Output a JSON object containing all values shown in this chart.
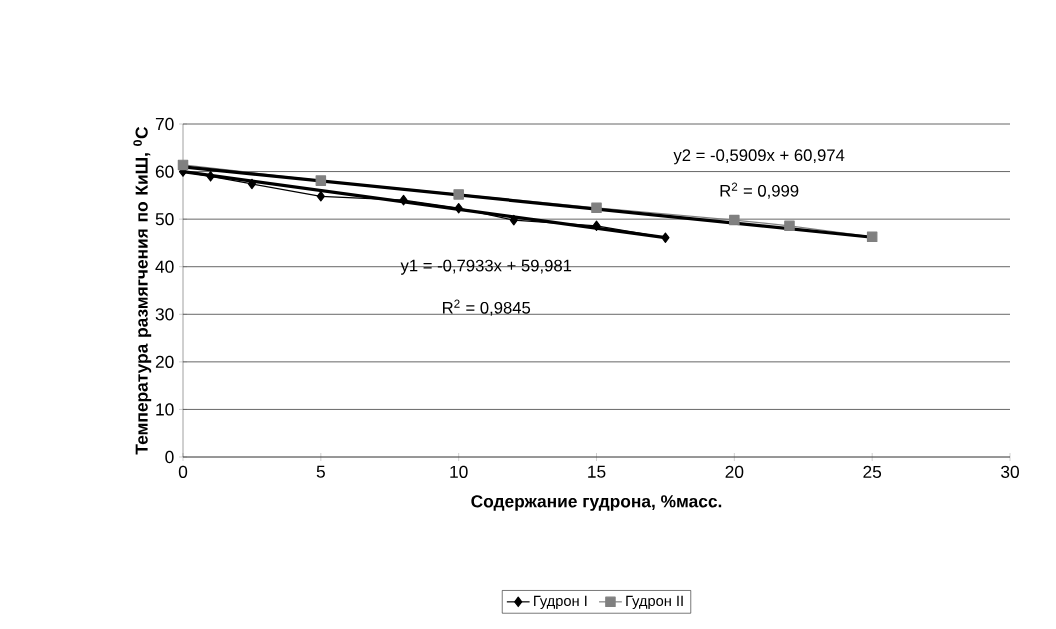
{
  "chart_data": {
    "type": "line",
    "xlabel": "Содержание гудрона, %масс.",
    "ylabel": "Температура размягчения по КиШ, $^{0}$C",
    "xlim": [
      0,
      30
    ],
    "xticks": [
      0,
      5,
      10,
      15,
      20,
      25,
      30
    ],
    "ylim": [
      0,
      70
    ],
    "yticks": [
      0,
      10,
      20,
      30,
      40,
      50,
      60,
      70
    ],
    "grid": "y",
    "legend": "bottom",
    "series": [
      {
        "name": "Гудрон I",
        "color": "#000000",
        "marker": "diamond",
        "x": [
          0,
          1,
          2.5,
          5,
          8,
          10,
          12,
          15,
          17.5
        ],
        "values": [
          60,
          59,
          57.4,
          54.8,
          54,
          52.3,
          49.8,
          48.6,
          46.1
        ]
      },
      {
        "name": "Гудрон II",
        "color": "#808080",
        "marker": "square",
        "x": [
          0,
          5,
          10,
          15,
          20,
          22,
          25
        ],
        "values": [
          61.4,
          58.1,
          55.2,
          52.4,
          49.8,
          48.6,
          46.3
        ]
      },
      {
        "type": "line",
        "color": "#000000",
        "marker": "none",
        "x": [
          0,
          17.5
        ],
        "values": [
          60.0,
          46.1
        ]
      },
      {
        "type": "line",
        "color": "#000000",
        "marker": "none",
        "x": [
          0,
          25
        ],
        "values": [
          61.0,
          46.2
        ]
      }
    ],
    "annotations": [
      "y2 = -0,5909x + 60,974",
      "R$^{2}$ = 0,999",
      "y1 = -0,7933x + 59,981",
      "R$^{2}$ = 0,9845"
    ]
  }
}
